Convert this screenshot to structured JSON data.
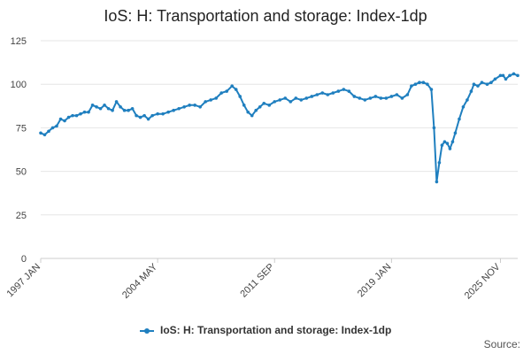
{
  "colors": {
    "series": "#1f7fbf",
    "grid": "#e6e6e6",
    "axis": "#cccccc"
  },
  "legend_label": "IoS: H: Transportation and storage: Index-1dp",
  "source_label": "Source:",
  "chart_data": {
    "type": "line",
    "title": "IoS: H: Transportation and storage: Index-1dp",
    "xlabel": "",
    "ylabel": "",
    "ylim": [
      0,
      125
    ],
    "yticks": [
      0,
      25,
      50,
      75,
      100,
      125
    ],
    "xticks": [
      "1997 JAN",
      "2004 MAY",
      "2011 SEP",
      "2019 JAN",
      "2025 NOV"
    ],
    "grid": true,
    "legend_position": "bottom",
    "series": [
      {
        "name": "IoS: H: Transportation and storage: Index-1dp",
        "points": [
          [
            "1997-01",
            72
          ],
          [
            "1997-04",
            71
          ],
          [
            "1997-07",
            73
          ],
          [
            "1997-10",
            75
          ],
          [
            "1998-01",
            76
          ],
          [
            "1998-04",
            80
          ],
          [
            "1998-07",
            79
          ],
          [
            "1998-10",
            81
          ],
          [
            "1999-01",
            82
          ],
          [
            "1999-04",
            82
          ],
          [
            "1999-07",
            83
          ],
          [
            "1999-10",
            84
          ],
          [
            "2000-01",
            84
          ],
          [
            "2000-04",
            88
          ],
          [
            "2000-07",
            87
          ],
          [
            "2000-10",
            86
          ],
          [
            "2001-01",
            88
          ],
          [
            "2001-04",
            86
          ],
          [
            "2001-07",
            85
          ],
          [
            "2001-10",
            90
          ],
          [
            "2002-01",
            87
          ],
          [
            "2002-04",
            85
          ],
          [
            "2002-07",
            85
          ],
          [
            "2002-10",
            86
          ],
          [
            "2003-01",
            82
          ],
          [
            "2003-04",
            81
          ],
          [
            "2003-07",
            82
          ],
          [
            "2003-10",
            80
          ],
          [
            "2004-01",
            82
          ],
          [
            "2004-05",
            83
          ],
          [
            "2004-09",
            83
          ],
          [
            "2005-01",
            84
          ],
          [
            "2005-05",
            85
          ],
          [
            "2005-09",
            86
          ],
          [
            "2006-01",
            87
          ],
          [
            "2006-05",
            88
          ],
          [
            "2006-09",
            88
          ],
          [
            "2007-01",
            87
          ],
          [
            "2007-05",
            90
          ],
          [
            "2007-09",
            91
          ],
          [
            "2008-01",
            92
          ],
          [
            "2008-05",
            95
          ],
          [
            "2008-09",
            96
          ],
          [
            "2009-01",
            99
          ],
          [
            "2009-04",
            97
          ],
          [
            "2009-07",
            93
          ],
          [
            "2009-10",
            88
          ],
          [
            "2010-01",
            84
          ],
          [
            "2010-04",
            82
          ],
          [
            "2010-07",
            85
          ],
          [
            "2010-10",
            87
          ],
          [
            "2011-01",
            89
          ],
          [
            "2011-05",
            88
          ],
          [
            "2011-09",
            90
          ],
          [
            "2012-01",
            91
          ],
          [
            "2012-05",
            92
          ],
          [
            "2012-09",
            90
          ],
          [
            "2013-01",
            92
          ],
          [
            "2013-05",
            91
          ],
          [
            "2013-09",
            92
          ],
          [
            "2014-01",
            93
          ],
          [
            "2014-05",
            94
          ],
          [
            "2014-09",
            95
          ],
          [
            "2015-01",
            94
          ],
          [
            "2015-05",
            95
          ],
          [
            "2015-09",
            96
          ],
          [
            "2016-01",
            97
          ],
          [
            "2016-05",
            96
          ],
          [
            "2016-09",
            93
          ],
          [
            "2017-01",
            92
          ],
          [
            "2017-05",
            91
          ],
          [
            "2017-09",
            92
          ],
          [
            "2018-01",
            93
          ],
          [
            "2018-05",
            92
          ],
          [
            "2018-09",
            92
          ],
          [
            "2019-01",
            93
          ],
          [
            "2019-05",
            94
          ],
          [
            "2019-09",
            92
          ],
          [
            "2020-01",
            94
          ],
          [
            "2020-04",
            99
          ],
          [
            "2020-07",
            100
          ],
          [
            "2020-10",
            101
          ],
          [
            "2021-01",
            101
          ],
          [
            "2021-04",
            100
          ],
          [
            "2021-07",
            97
          ],
          [
            "2021-09",
            75
          ],
          [
            "2021-11",
            44
          ],
          [
            "2022-01",
            55
          ],
          [
            "2022-03",
            65
          ],
          [
            "2022-05",
            67
          ],
          [
            "2022-07",
            66
          ],
          [
            "2022-09",
            63
          ],
          [
            "2022-11",
            67
          ],
          [
            "2023-01",
            72
          ],
          [
            "2023-04",
            80
          ],
          [
            "2023-07",
            87
          ],
          [
            "2023-10",
            91
          ],
          [
            "2024-01",
            96
          ],
          [
            "2024-03",
            100
          ],
          [
            "2024-06",
            99
          ],
          [
            "2024-09",
            101
          ],
          [
            "2025-01",
            100
          ],
          [
            "2025-04",
            101
          ],
          [
            "2025-07",
            103
          ],
          [
            "2025-11",
            105
          ],
          [
            "2026-01",
            105
          ],
          [
            "2026-03",
            103
          ],
          [
            "2026-06",
            105
          ],
          [
            "2026-09",
            106
          ],
          [
            "2026-12",
            105
          ]
        ]
      }
    ]
  }
}
